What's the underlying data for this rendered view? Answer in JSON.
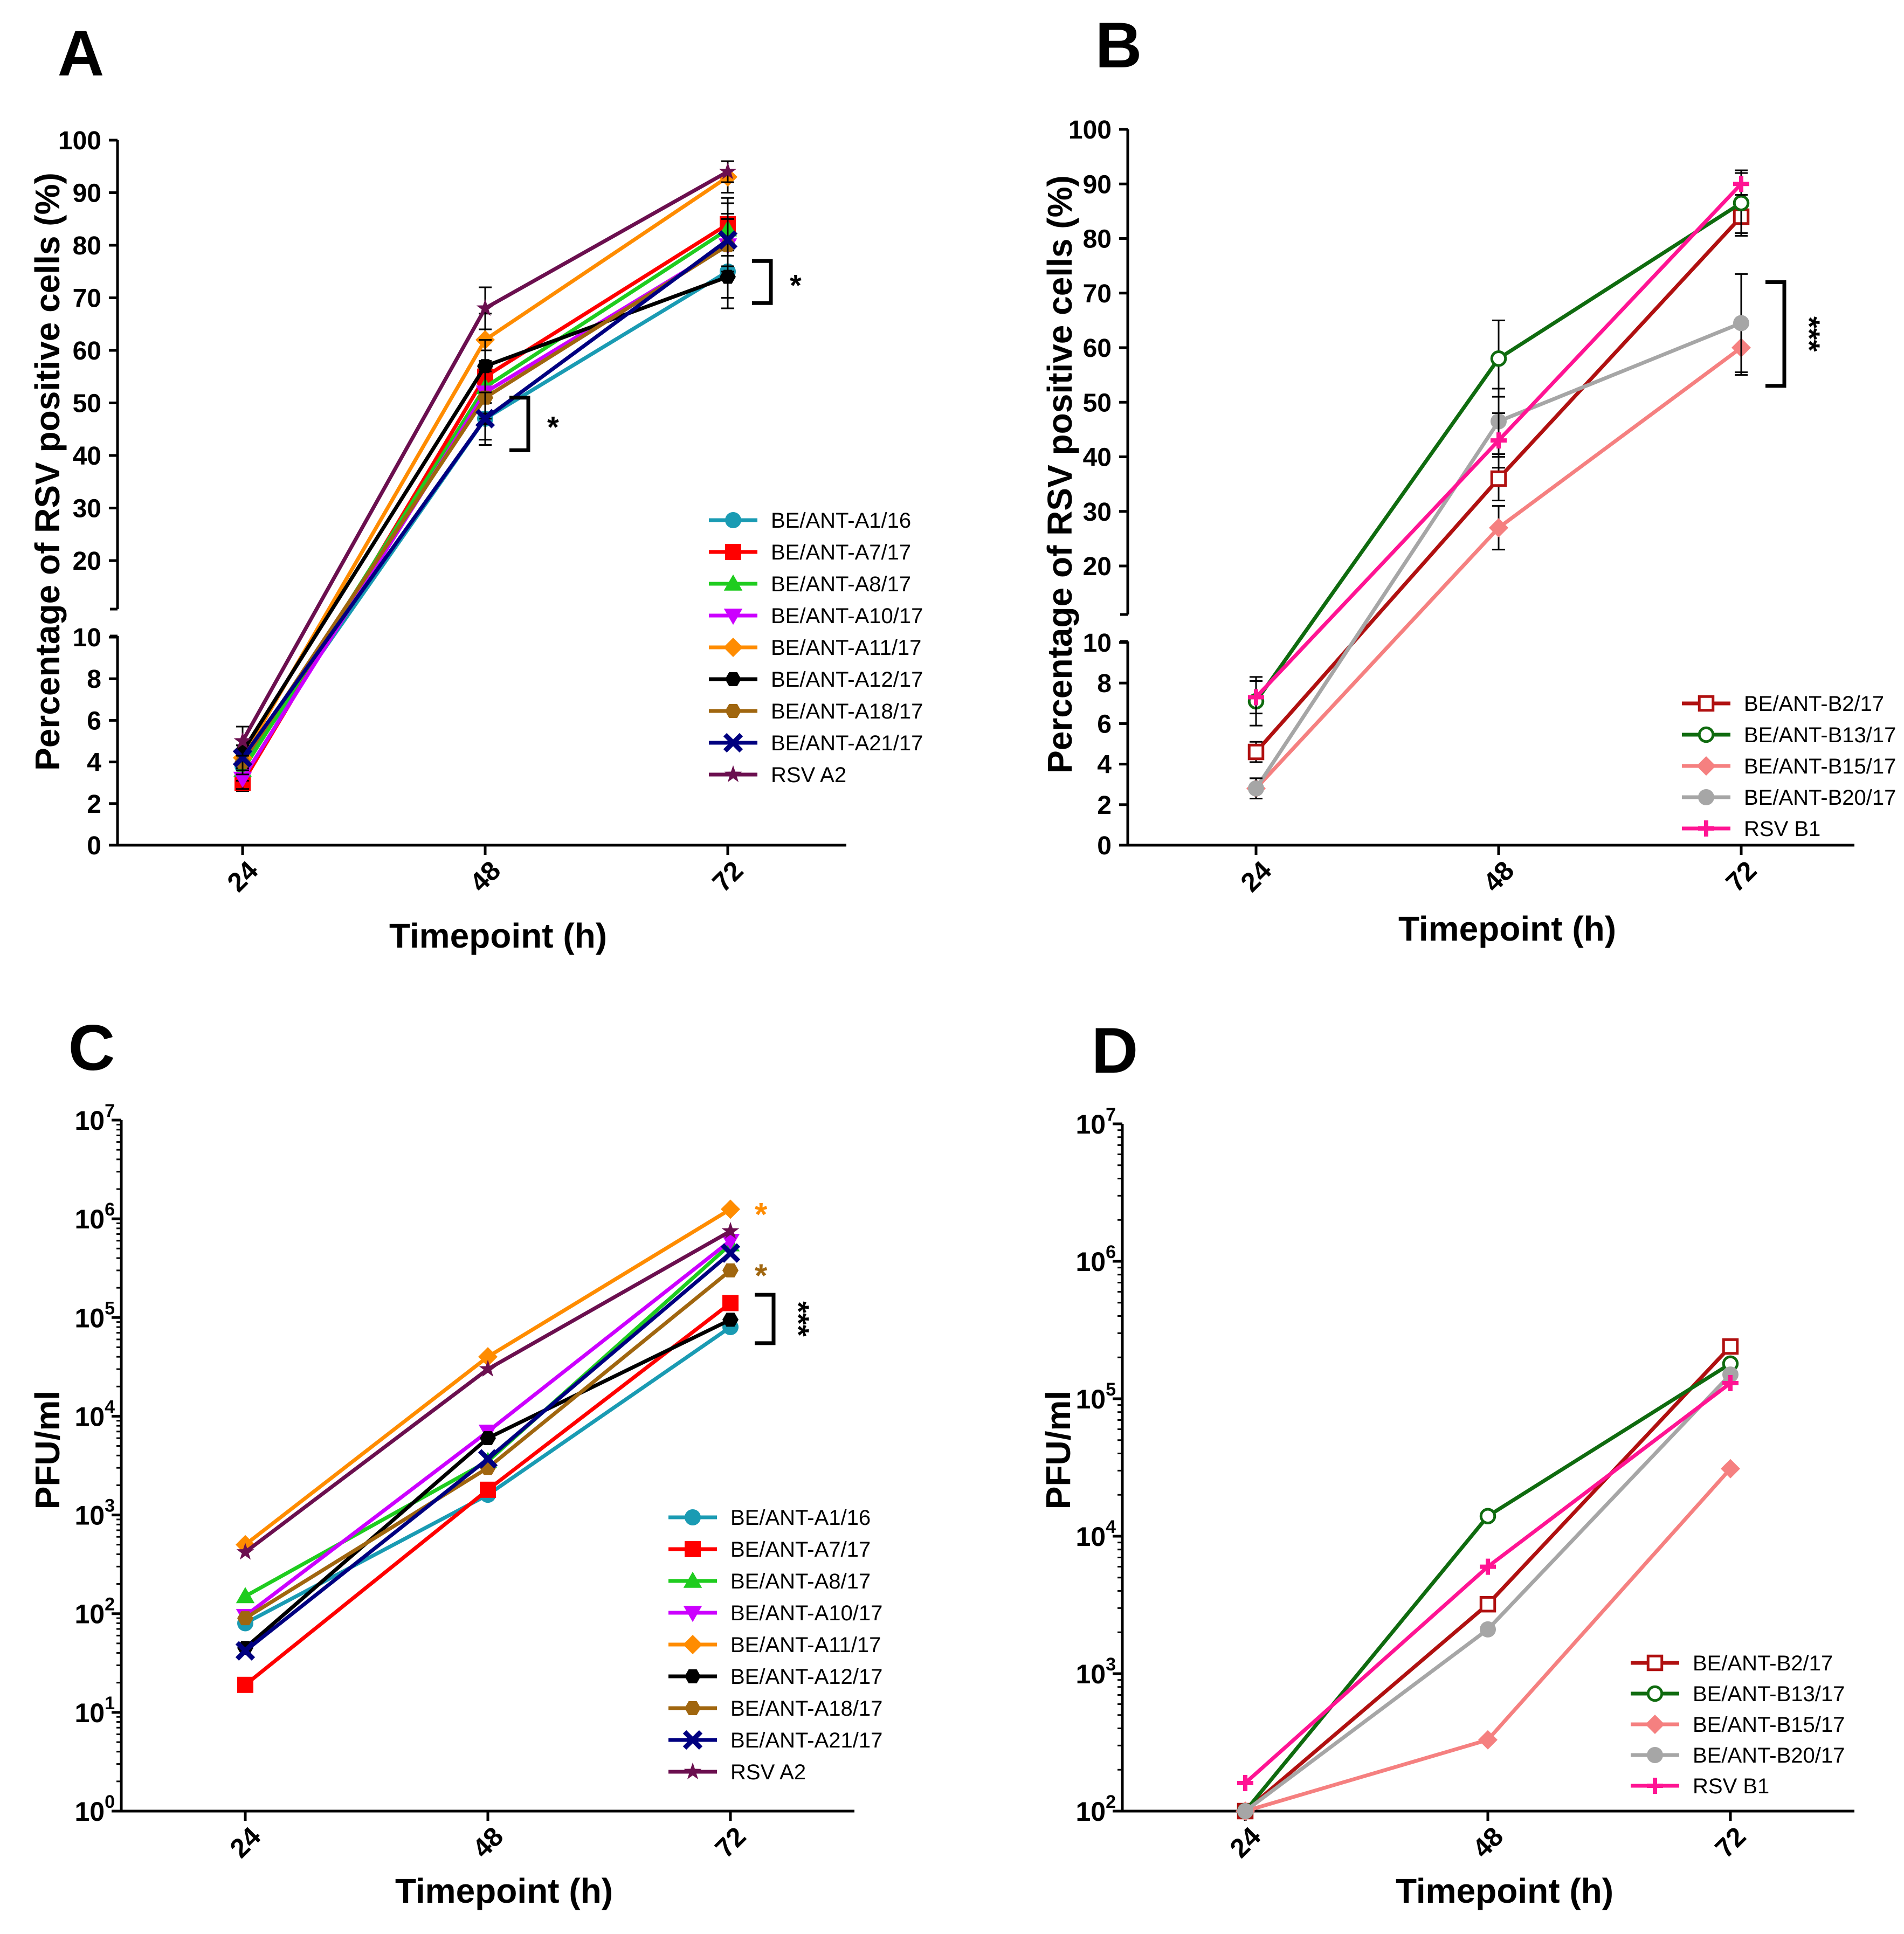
{
  "panel_labels": [
    "A",
    "B",
    "C",
    "D"
  ],
  "chart_data": [
    {
      "panel": "A",
      "type": "line",
      "ylabel": "Percentage of RSV positive cells (%)",
      "xlabel": "Timepoint (h)",
      "categories": [
        "24",
        "48",
        "72"
      ],
      "y_scale": "broken-linear",
      "y_lower_ticks": [
        "0",
        "2",
        "4",
        "6",
        "8",
        "10"
      ],
      "y_upper_ticks": [
        "20",
        "30",
        "40",
        "50",
        "60",
        "70",
        "80",
        "90",
        "100"
      ],
      "series": [
        {
          "name": "BE/ANT-A1/16",
          "color": "#1a9bb3",
          "marker": "circle",
          "values": [
            3.8,
            47,
            75
          ],
          "errors": [
            0.6,
            4,
            5
          ]
        },
        {
          "name": "BE/ANT-A7/17",
          "color": "#ff0000",
          "marker": "square",
          "values": [
            3.0,
            55,
            84
          ],
          "errors": [
            0.4,
            5,
            5
          ]
        },
        {
          "name": "BE/ANT-A8/17",
          "color": "#1fcc1f",
          "marker": "triangle-up",
          "values": [
            3.6,
            53,
            83
          ],
          "errors": [
            0.5,
            5,
            5
          ]
        },
        {
          "name": "BE/ANT-A10/17",
          "color": "#cc00ff",
          "marker": "triangle-down",
          "values": [
            3.2,
            52,
            80
          ],
          "errors": [
            0.5,
            5,
            5
          ]
        },
        {
          "name": "BE/ANT-A11/17",
          "color": "#ff8c00",
          "marker": "diamond",
          "values": [
            4.2,
            62,
            93
          ],
          "errors": [
            0.6,
            5,
            3
          ]
        },
        {
          "name": "BE/ANT-A12/17",
          "color": "#000000",
          "marker": "hexagon",
          "values": [
            4.5,
            57,
            74
          ],
          "errors": [
            0.6,
            5,
            6
          ]
        },
        {
          "name": "BE/ANT-A18/17",
          "color": "#a0660f",
          "marker": "hexagon",
          "values": [
            4.0,
            51,
            80
          ],
          "errors": [
            0.6,
            5,
            5
          ]
        },
        {
          "name": "BE/ANT-A21/17",
          "color": "#000080",
          "marker": "x",
          "values": [
            4.2,
            47,
            81
          ],
          "errors": [
            0.6,
            5,
            5
          ]
        },
        {
          "name": "RSV A2",
          "color": "#6b0f4f",
          "marker": "star",
          "values": [
            5.0,
            68,
            94
          ],
          "errors": [
            0.7,
            4,
            2
          ]
        }
      ],
      "annotations": [
        {
          "text": "*",
          "category": "48",
          "y_from": 41,
          "y_to": 51
        },
        {
          "text": "*",
          "category": "72",
          "y_from": 69,
          "y_to": 77
        }
      ]
    },
    {
      "panel": "B",
      "type": "line",
      "ylabel": "Percentage of RSV positive cells (%)",
      "xlabel": "Timepoint (h)",
      "categories": [
        "24",
        "48",
        "72"
      ],
      "y_scale": "broken-linear",
      "y_lower_ticks": [
        "0",
        "2",
        "4",
        "6",
        "8",
        "10"
      ],
      "y_upper_ticks": [
        "20",
        "30",
        "40",
        "50",
        "60",
        "70",
        "80",
        "90",
        "100"
      ],
      "series": [
        {
          "name": "BE/ANT-B2/17",
          "color": "#b01010",
          "marker": "open-square",
          "values": [
            4.6,
            36,
            84
          ],
          "errors": [
            0.5,
            4,
            3
          ]
        },
        {
          "name": "BE/ANT-B13/17",
          "color": "#0f6b0f",
          "marker": "open-circle",
          "values": [
            7.1,
            58,
            86.5
          ],
          "errors": [
            1.2,
            7,
            6
          ]
        },
        {
          "name": "BE/ANT-B15/17",
          "color": "#f58080",
          "marker": "diamond",
          "values": [
            2.8,
            27,
            60
          ],
          "errors": [
            0.5,
            4,
            5
          ]
        },
        {
          "name": "BE/ANT-B20/17",
          "color": "#a6a6a6",
          "marker": "circle",
          "values": [
            2.8,
            46.5,
            64.5
          ],
          "errors": [
            0.5,
            6,
            9
          ]
        },
        {
          "name": "RSV B1",
          "color": "#ff1493",
          "marker": "cross",
          "values": [
            7.3,
            43,
            90
          ],
          "errors": [
            0.8,
            5,
            2
          ]
        }
      ],
      "annotations": [
        {
          "text": "***",
          "category": "72",
          "y_from": 53,
          "y_to": 72
        }
      ]
    },
    {
      "panel": "C",
      "type": "line",
      "ylabel": "PFU/ml",
      "xlabel": "Timepoint (h)",
      "categories": [
        "24",
        "48",
        "72"
      ],
      "y_scale": "log10",
      "ylim_exponent": [
        0,
        7
      ],
      "y_ticks": [
        {
          "base": "10",
          "exp": "0"
        },
        {
          "base": "10",
          "exp": "1"
        },
        {
          "base": "10",
          "exp": "2"
        },
        {
          "base": "10",
          "exp": "3"
        },
        {
          "base": "10",
          "exp": "4"
        },
        {
          "base": "10",
          "exp": "5"
        },
        {
          "base": "10",
          "exp": "6"
        },
        {
          "base": "10",
          "exp": "7"
        }
      ],
      "series": [
        {
          "name": "BE/ANT-A1/16",
          "color": "#1a9bb3",
          "marker": "circle",
          "values": [
            80,
            1600,
            80000
          ]
        },
        {
          "name": "BE/ANT-A7/17",
          "color": "#ff0000",
          "marker": "square",
          "values": [
            19,
            1800,
            140000
          ]
        },
        {
          "name": "BE/ANT-A8/17",
          "color": "#1fcc1f",
          "marker": "triangle-up",
          "values": [
            150,
            3500,
            550000
          ]
        },
        {
          "name": "BE/ANT-A10/17",
          "color": "#cc00ff",
          "marker": "triangle-down",
          "values": [
            95,
            7000,
            600000
          ]
        },
        {
          "name": "BE/ANT-A11/17",
          "color": "#ff8c00",
          "marker": "diamond",
          "values": [
            500,
            40000,
            1250000
          ]
        },
        {
          "name": "BE/ANT-A12/17",
          "color": "#000000",
          "marker": "hexagon",
          "values": [
            45,
            6000,
            95000
          ]
        },
        {
          "name": "BE/ANT-A18/17",
          "color": "#a0660f",
          "marker": "hexagon",
          "values": [
            90,
            3000,
            300000
          ]
        },
        {
          "name": "BE/ANT-A21/17",
          "color": "#000080",
          "marker": "x",
          "values": [
            42,
            3700,
            450000
          ]
        },
        {
          "name": "RSV A2",
          "color": "#6b0f4f",
          "marker": "star",
          "values": [
            420,
            30000,
            750000
          ]
        }
      ],
      "annotations": [
        {
          "text": "*",
          "color": "#ff8c00",
          "category": "72",
          "value": 1250000
        },
        {
          "text": "*",
          "color": "#a0660f",
          "category": "72",
          "value": 300000
        },
        {
          "text": "***",
          "color": "#000000",
          "category": "72",
          "y_from": 55000,
          "y_to": 170000
        }
      ]
    },
    {
      "panel": "D",
      "type": "line",
      "ylabel": "PFU/ml",
      "xlabel": "Timepoint (h)",
      "categories": [
        "24",
        "48",
        "72"
      ],
      "y_scale": "log10",
      "ylim_exponent": [
        2,
        7
      ],
      "y_ticks": [
        {
          "base": "10",
          "exp": "2"
        },
        {
          "base": "10",
          "exp": "3"
        },
        {
          "base": "10",
          "exp": "4"
        },
        {
          "base": "10",
          "exp": "5"
        },
        {
          "base": "10",
          "exp": "6"
        },
        {
          "base": "10",
          "exp": "7"
        }
      ],
      "series": [
        {
          "name": "BE/ANT-B2/17",
          "color": "#b01010",
          "marker": "open-square",
          "values": [
            100,
            3200,
            240000
          ]
        },
        {
          "name": "BE/ANT-B13/17",
          "color": "#0f6b0f",
          "marker": "open-circle",
          "values": [
            100,
            14000,
            180000
          ]
        },
        {
          "name": "BE/ANT-B15/17",
          "color": "#f58080",
          "marker": "diamond",
          "values": [
            100,
            330,
            31000
          ]
        },
        {
          "name": "BE/ANT-B20/17",
          "color": "#a6a6a6",
          "marker": "circle",
          "values": [
            100,
            2100,
            150000
          ]
        },
        {
          "name": "RSV B1",
          "color": "#ff1493",
          "marker": "cross",
          "values": [
            160,
            6000,
            130000
          ]
        }
      ],
      "annotations": []
    }
  ]
}
